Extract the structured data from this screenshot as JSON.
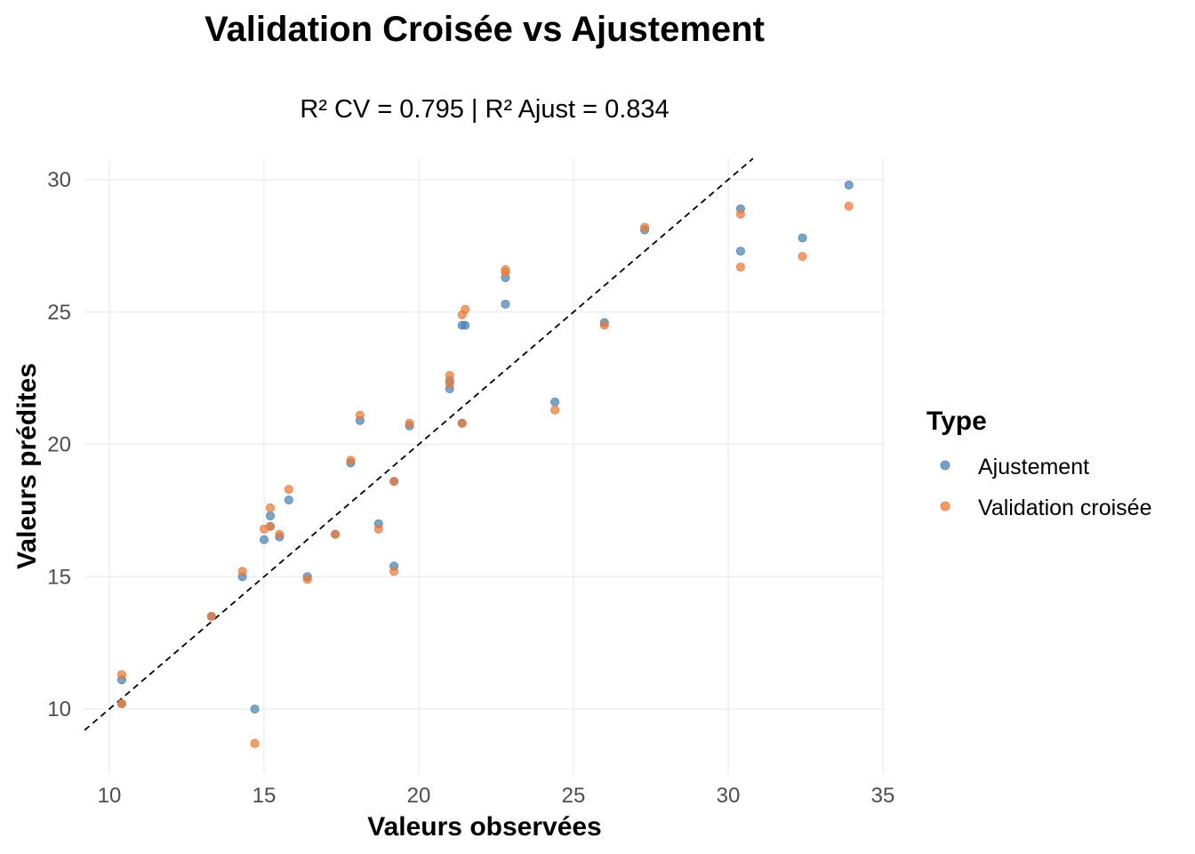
{
  "chart_data": {
    "type": "scatter",
    "title": "Validation Croisée vs Ajustement",
    "subtitle": "R² CV = 0.795 | R² Ajust = 0.834",
    "xlabel": "Valeurs observées",
    "ylabel": "Valeurs prédites",
    "xlim": [
      9.2,
      35
    ],
    "ylim": [
      8.3,
      30.8
    ],
    "x_ticks": [
      10,
      15,
      20,
      25,
      30,
      35
    ],
    "y_ticks": [
      10,
      15,
      20,
      25,
      30
    ],
    "grid": true,
    "legend": {
      "title": "Type",
      "position": "right"
    },
    "reference_line": {
      "type": "identity",
      "style": "dashed",
      "color": "#000000"
    },
    "series": [
      {
        "name": "Ajustement",
        "color": "#4682B4",
        "points": [
          [
            10.4,
            11.1
          ],
          [
            10.4,
            10.2
          ],
          [
            13.3,
            13.5
          ],
          [
            14.3,
            15.0
          ],
          [
            14.7,
            10.0
          ],
          [
            15.0,
            16.4
          ],
          [
            15.2,
            16.9
          ],
          [
            15.2,
            17.3
          ],
          [
            15.5,
            16.5
          ],
          [
            15.8,
            17.9
          ],
          [
            16.4,
            15.0
          ],
          [
            17.3,
            16.6
          ],
          [
            17.8,
            19.3
          ],
          [
            18.1,
            20.9
          ],
          [
            18.7,
            17.0
          ],
          [
            19.2,
            18.6
          ],
          [
            19.2,
            15.4
          ],
          [
            19.7,
            20.7
          ],
          [
            21.0,
            22.1
          ],
          [
            21.0,
            22.4
          ],
          [
            21.4,
            20.8
          ],
          [
            21.4,
            24.5
          ],
          [
            21.5,
            24.5
          ],
          [
            22.8,
            25.3
          ],
          [
            22.8,
            26.3
          ],
          [
            24.4,
            21.6
          ],
          [
            26.0,
            24.6
          ],
          [
            27.3,
            28.1
          ],
          [
            30.4,
            28.9
          ],
          [
            30.4,
            27.3
          ],
          [
            32.4,
            27.8
          ],
          [
            33.9,
            29.8
          ]
        ]
      },
      {
        "name": "Validation croisée",
        "color": "#EE7733",
        "points": [
          [
            10.4,
            11.3
          ],
          [
            10.4,
            10.2
          ],
          [
            13.3,
            13.5
          ],
          [
            14.3,
            15.2
          ],
          [
            14.7,
            8.7
          ],
          [
            15.0,
            16.8
          ],
          [
            15.2,
            16.9
          ],
          [
            15.2,
            17.6
          ],
          [
            15.5,
            16.6
          ],
          [
            15.8,
            18.3
          ],
          [
            16.4,
            14.9
          ],
          [
            17.3,
            16.6
          ],
          [
            17.8,
            19.4
          ],
          [
            18.1,
            21.1
          ],
          [
            18.7,
            16.8
          ],
          [
            19.2,
            18.6
          ],
          [
            19.2,
            15.2
          ],
          [
            19.7,
            20.8
          ],
          [
            21.0,
            22.3
          ],
          [
            21.0,
            22.6
          ],
          [
            21.4,
            20.8
          ],
          [
            21.4,
            24.9
          ],
          [
            21.5,
            25.1
          ],
          [
            22.8,
            26.5
          ],
          [
            22.8,
            26.6
          ],
          [
            24.4,
            21.3
          ],
          [
            26.0,
            24.5
          ],
          [
            27.3,
            28.2
          ],
          [
            30.4,
            28.7
          ],
          [
            30.4,
            26.7
          ],
          [
            32.4,
            27.1
          ],
          [
            33.9,
            29.0
          ]
        ]
      }
    ]
  }
}
